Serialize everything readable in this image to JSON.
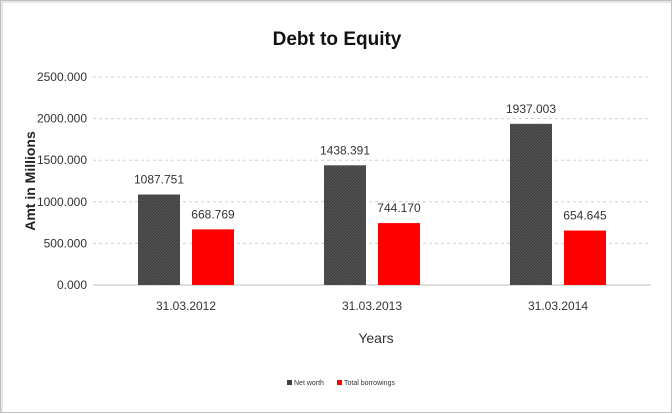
{
  "chart_data": {
    "type": "bar",
    "title": "Debt to Equity",
    "xlabel": "Years",
    "ylabel": "Amt in Millions",
    "categories": [
      "31.03.2012",
      "31.03.2013",
      "31.03.2014"
    ],
    "series": [
      {
        "name": "Net worth",
        "values": [
          1087.751,
          1438.391,
          1937.003
        ],
        "labels": [
          "1087.751",
          "1438.391",
          "1937.003"
        ],
        "color": "#404040"
      },
      {
        "name": "Total borrowings",
        "values": [
          668.769,
          744.17,
          654.645
        ],
        "labels": [
          "668.769",
          "744.170",
          "654.645"
        ],
        "color": "#ff0000"
      }
    ],
    "yticks": [
      "0.000",
      "500.000",
      "1000.000",
      "1500.000",
      "2000.000",
      "2500.000"
    ],
    "ylim": [
      0,
      2500
    ],
    "grid": true,
    "legend_position": "bottom"
  }
}
